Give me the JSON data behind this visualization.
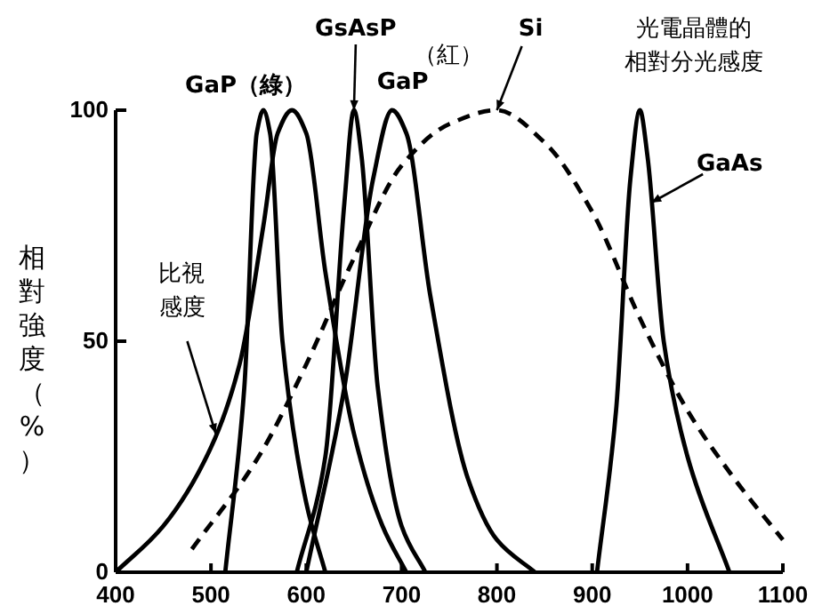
{
  "chart_data": {
    "type": "line",
    "ylabel": "相對強度（%）",
    "xlim": [
      400,
      1100
    ],
    "ylim": [
      0,
      100
    ],
    "xticks": [
      400,
      500,
      600,
      700,
      800,
      900,
      1000,
      1100
    ],
    "yticks": [
      0,
      50,
      100
    ],
    "grid": false,
    "marker": "none",
    "series": [
      {
        "color": "#000000",
        "line_style": "solid",
        "x": [
          400,
          450,
          500,
          530,
          555,
          570,
          585,
          600,
          620,
          650,
          680,
          705
        ],
        "values": [
          0,
          10,
          27,
          45,
          75,
          95,
          100,
          95,
          65,
          30,
          10,
          0
        ]
      },
      {
        "color": "#000000",
        "line_style": "solid",
        "x": [
          515,
          535,
          548,
          555,
          562,
          575,
          600,
          620
        ],
        "values": [
          0,
          40,
          95,
          100,
          95,
          50,
          15,
          0
        ]
      },
      {
        "color": "#000000",
        "line_style": "solid",
        "x": [
          590,
          620,
          640,
          650,
          658,
          675,
          700,
          725
        ],
        "values": [
          0,
          25,
          80,
          100,
          90,
          40,
          10,
          0
        ]
      },
      {
        "color": "#000000",
        "line_style": "solid",
        "x": [
          600,
          640,
          670,
          690,
          705,
          730,
          770,
          800,
          840
        ],
        "values": [
          0,
          40,
          85,
          100,
          95,
          60,
          20,
          7,
          0
        ]
      },
      {
        "color": "#000000",
        "line_style": "dashed",
        "x": [
          480,
          550,
          600,
          650,
          700,
          750,
          800,
          850,
          900,
          950,
          1000,
          1050,
          1100
        ],
        "values": [
          5,
          25,
          45,
          68,
          88,
          97,
          100,
          93,
          78,
          55,
          35,
          20,
          7
        ]
      },
      {
        "color": "#000000",
        "line_style": "solid",
        "x": [
          905,
          925,
          940,
          950,
          958,
          975,
          1000,
          1044
        ],
        "values": [
          0,
          35,
          85,
          100,
          90,
          50,
          25,
          0
        ]
      }
    ],
    "annotations": [
      {
        "text": "GaP（綠）",
        "x": 555,
        "y": 100
      },
      {
        "text": "GsAsP",
        "x": 650,
        "y": 100
      },
      {
        "text": "GaP",
        "x": 690,
        "y": 100
      },
      {
        "text": "（紅）"
      },
      {
        "text": "Si",
        "x": 800,
        "y": 100
      },
      "光電晶體的",
      "相對分光感度",
      {
        "text": "GaAs",
        "x": 962,
        "y": 80
      },
      "比視",
      {
        "text": "感度",
        "x": 505,
        "y": 30
      }
    ]
  }
}
